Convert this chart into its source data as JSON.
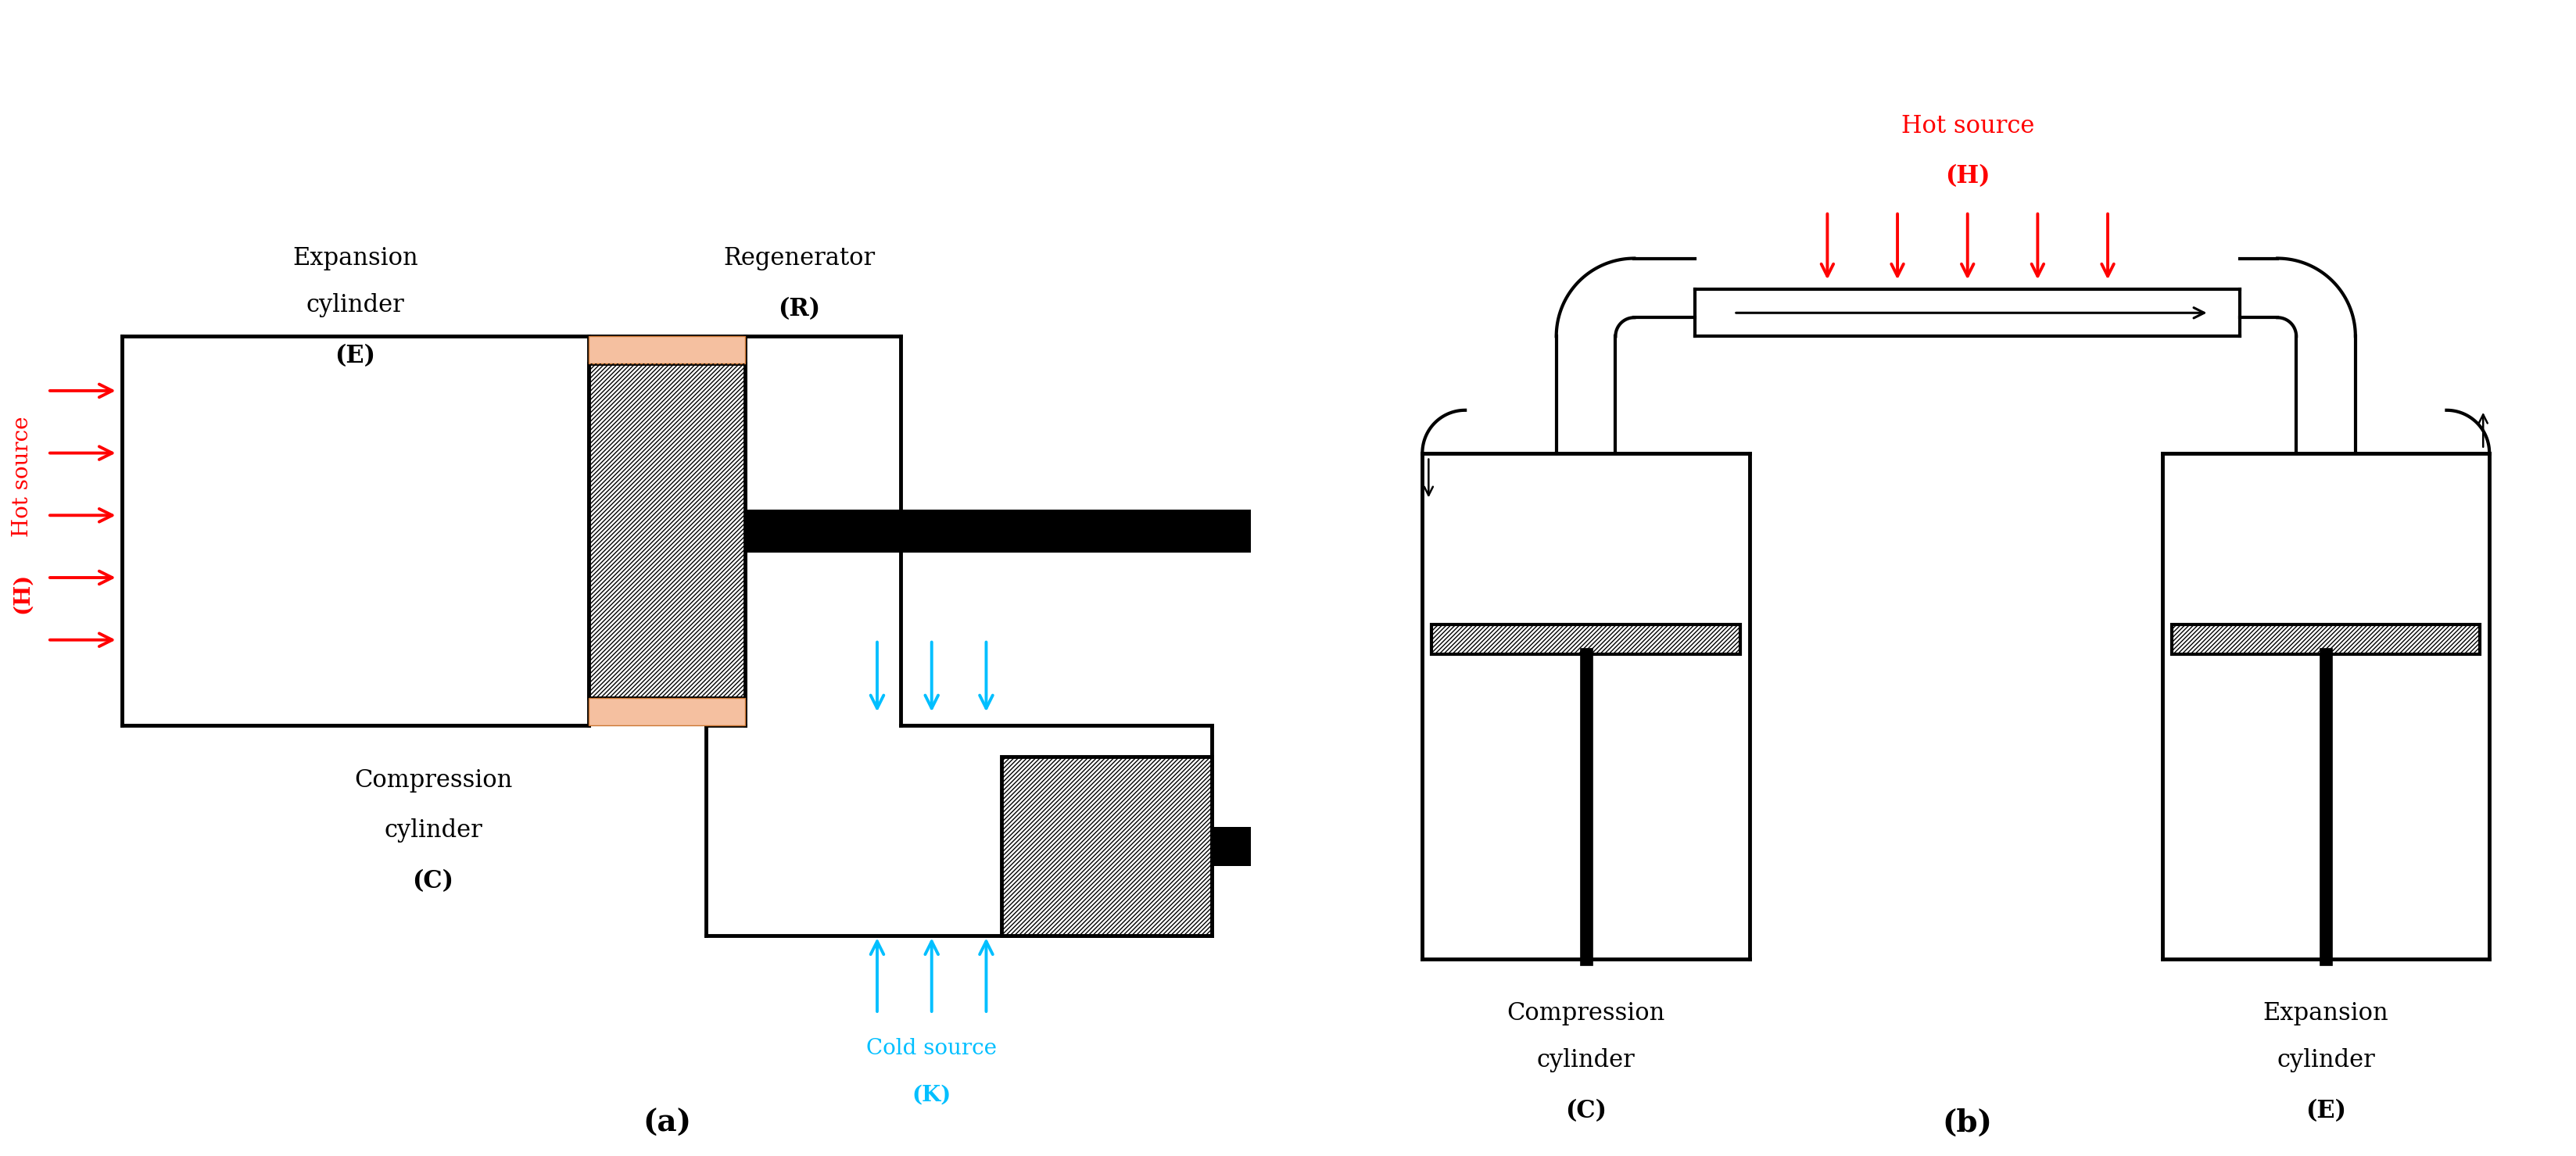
{
  "fig_width": 32.95,
  "fig_height": 14.79,
  "bg_color": "#ffffff",
  "lw": 3.0,
  "hot_color": "#ff0000",
  "cold_color": "#00bfff",
  "orange_color": "#f5c0a0",
  "a_label": "(a)",
  "b_label": "(b)",
  "exp_label": [
    "Expansion",
    "cylinder",
    "(E)"
  ],
  "regen_label": [
    "Regenerator",
    "(R)"
  ],
  "comp_label_a": [
    "Compression",
    "cylinder",
    "(C)"
  ],
  "hot_source_label": [
    "Hot source",
    "(H)"
  ],
  "cold_source_label": [
    "Cold source",
    "(K)"
  ],
  "comp_label_b": [
    "Compression",
    "cylinder",
    "(C)"
  ],
  "exp_label_b": [
    "Expansion",
    "cylinder",
    "(E)"
  ],
  "hot_source_b": [
    "Hot source",
    "(H)"
  ]
}
